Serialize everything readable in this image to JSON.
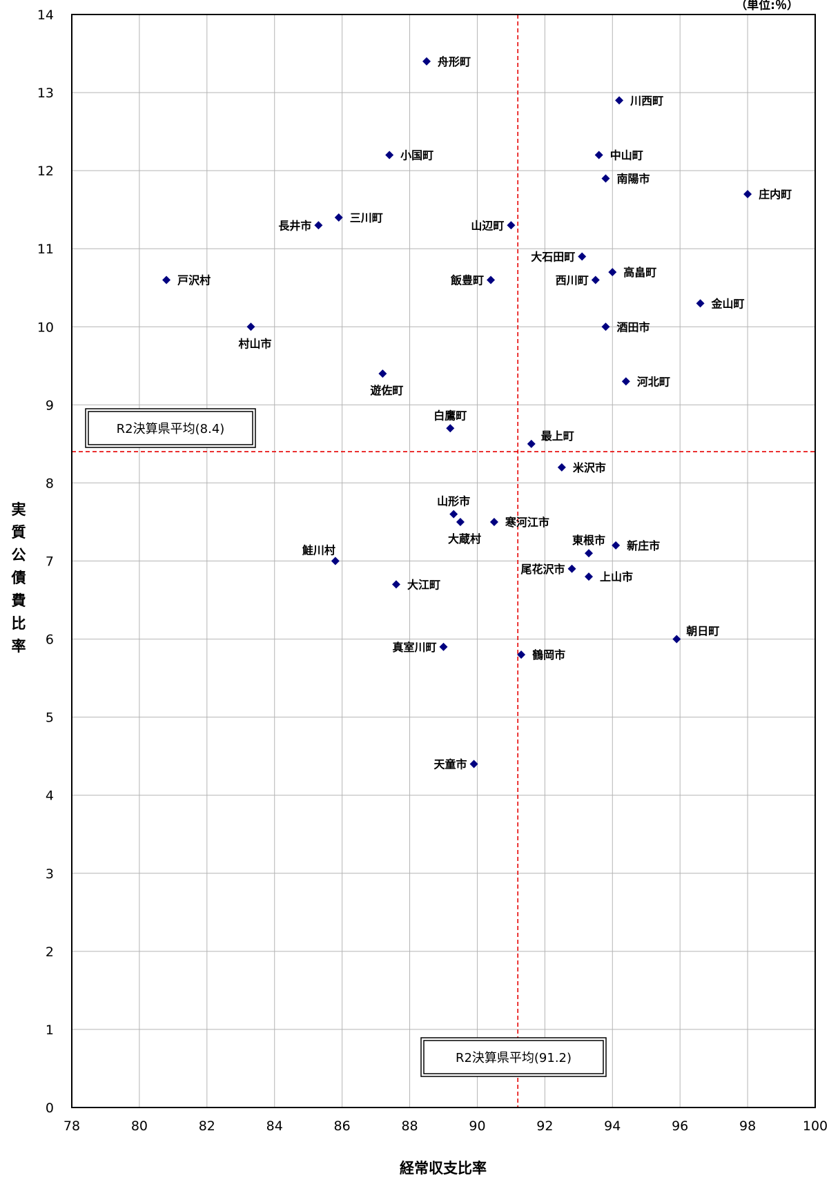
{
  "chart_data": {
    "type": "scatter",
    "unit_note": "（単位:％）",
    "xlabel": "経常収支比率",
    "ylabel": "実質公債費比率",
    "xlim": [
      78,
      100
    ],
    "ylim": [
      0,
      14
    ],
    "x_ticks": [
      "78",
      "80",
      "82",
      "84",
      "86",
      "88",
      "90",
      "92",
      "94",
      "96",
      "98",
      "100"
    ],
    "y_ticks": [
      "0",
      "1",
      "2",
      "3",
      "4",
      "5",
      "6",
      "7",
      "8",
      "9",
      "10",
      "11",
      "12",
      "13",
      "14"
    ],
    "grid": true,
    "point_color": "#000080",
    "reference_color": "#e60000",
    "reference_lines": [
      {
        "axis": "x",
        "value": 91.2,
        "label": "R2決算県平均(91.2)"
      },
      {
        "axis": "y",
        "value": 8.4,
        "label": "R2決算県平均(8.4)"
      }
    ],
    "points": [
      {
        "name": "舟形町",
        "x": 88.5,
        "y": 13.4,
        "pos": "right"
      },
      {
        "name": "川西町",
        "x": 94.2,
        "y": 12.9,
        "pos": "right"
      },
      {
        "name": "小国町",
        "x": 87.4,
        "y": 12.2,
        "pos": "right"
      },
      {
        "name": "中山町",
        "x": 93.6,
        "y": 12.2,
        "pos": "right"
      },
      {
        "name": "南陽市",
        "x": 93.8,
        "y": 11.9,
        "pos": "right"
      },
      {
        "name": "庄内町",
        "x": 98.0,
        "y": 11.7,
        "pos": "right"
      },
      {
        "name": "三川町",
        "x": 85.9,
        "y": 11.4,
        "pos": "right"
      },
      {
        "name": "長井市",
        "x": 85.3,
        "y": 11.3,
        "pos": "left"
      },
      {
        "name": "山辺町",
        "x": 91.0,
        "y": 11.3,
        "pos": "left"
      },
      {
        "name": "大石田町",
        "x": 93.1,
        "y": 10.9,
        "pos": "left"
      },
      {
        "name": "高畠町",
        "x": 94.0,
        "y": 10.7,
        "pos": "right"
      },
      {
        "name": "戸沢村",
        "x": 80.8,
        "y": 10.6,
        "pos": "right"
      },
      {
        "name": "飯豊町",
        "x": 90.4,
        "y": 10.6,
        "pos": "left"
      },
      {
        "name": "西川町",
        "x": 93.5,
        "y": 10.6,
        "pos": "left"
      },
      {
        "name": "金山町",
        "x": 96.6,
        "y": 10.3,
        "pos": "right"
      },
      {
        "name": "村山市",
        "x": 83.3,
        "y": 10.0,
        "pos": "below"
      },
      {
        "name": "酒田市",
        "x": 93.8,
        "y": 10.0,
        "pos": "right"
      },
      {
        "name": "遊佐町",
        "x": 87.2,
        "y": 9.4,
        "pos": "below"
      },
      {
        "name": "河北町",
        "x": 94.4,
        "y": 9.3,
        "pos": "right"
      },
      {
        "name": "白鷹町",
        "x": 89.2,
        "y": 8.7,
        "pos": "above"
      },
      {
        "name": "最上町",
        "x": 91.6,
        "y": 8.5,
        "pos": "aboveright"
      },
      {
        "name": "米沢市",
        "x": 92.5,
        "y": 8.2,
        "pos": "right"
      },
      {
        "name": "山形市",
        "x": 89.3,
        "y": 7.6,
        "pos": "above"
      },
      {
        "name": "大蔵村",
        "x": 89.5,
        "y": 7.5,
        "pos": "below"
      },
      {
        "name": "寒河江市",
        "x": 90.5,
        "y": 7.5,
        "pos": "right"
      },
      {
        "name": "新庄市",
        "x": 94.1,
        "y": 7.2,
        "pos": "right"
      },
      {
        "name": "東根市",
        "x": 93.3,
        "y": 7.1,
        "pos": "above"
      },
      {
        "name": "鮭川村",
        "x": 85.8,
        "y": 7.0,
        "pos": "aboveleft"
      },
      {
        "name": "尾花沢市",
        "x": 92.8,
        "y": 6.9,
        "pos": "left"
      },
      {
        "name": "上山市",
        "x": 93.3,
        "y": 6.8,
        "pos": "right"
      },
      {
        "name": "大江町",
        "x": 87.6,
        "y": 6.7,
        "pos": "right"
      },
      {
        "name": "朝日町",
        "x": 95.9,
        "y": 6.0,
        "pos": "aboveright"
      },
      {
        "name": "真室川町",
        "x": 89.0,
        "y": 5.9,
        "pos": "left"
      },
      {
        "name": "鶴岡市",
        "x": 91.3,
        "y": 5.8,
        "pos": "right"
      },
      {
        "name": "天童市",
        "x": 89.9,
        "y": 4.4,
        "pos": "left"
      }
    ]
  }
}
